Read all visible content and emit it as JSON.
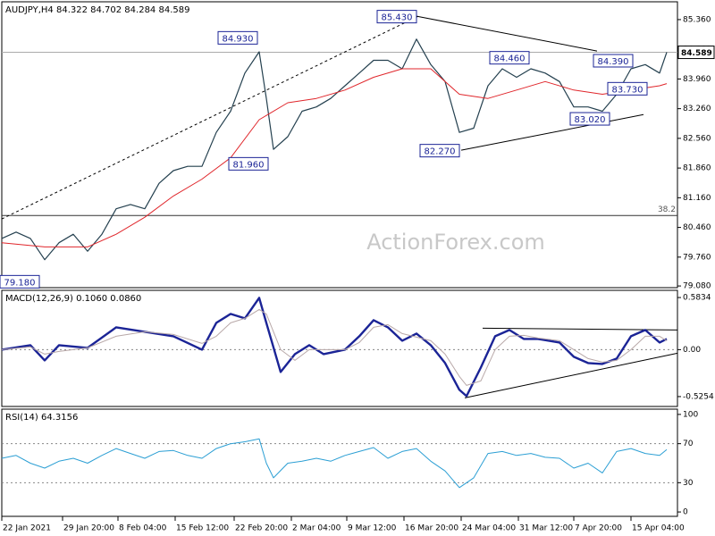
{
  "chart_data": [
    {
      "type": "line",
      "title": "AUDJPY,H4  84.322 84.702 84.284 84.589",
      "watermark": "ActionForex.com",
      "xlim": [
        0,
        378
      ],
      "ylim": [
        79.04,
        85.78
      ],
      "last_value_label": true,
      "yticks": [
        {
          "value": 85.36,
          "label": "85.360"
        },
        {
          "value": 84.66,
          "label": "84.660"
        },
        {
          "value": 83.96,
          "label": "83.960"
        },
        {
          "value": 83.26,
          "label": "83.260"
        },
        {
          "value": 82.56,
          "label": "82.560"
        },
        {
          "value": 81.86,
          "label": "81.860"
        },
        {
          "value": 81.16,
          "label": "81.160"
        },
        {
          "value": 80.46,
          "label": "80.460"
        },
        {
          "value": 79.76,
          "label": "79.760"
        },
        {
          "value": 79.08,
          "label": "79.080"
        }
      ],
      "series": [
        {
          "name": "AUDJPY",
          "color": "#24404f",
          "width": 1.2,
          "x": [
            0,
            8,
            16,
            24,
            32,
            40,
            48,
            56,
            64,
            72,
            80,
            88,
            96,
            104,
            112,
            120,
            128,
            136,
            144,
            148,
            152,
            160,
            168,
            176,
            184,
            192,
            200,
            208,
            216,
            224,
            232,
            240,
            248,
            256,
            264,
            272,
            280,
            288,
            296,
            304,
            312,
            320,
            328,
            336,
            344,
            352,
            360,
            368,
            372
          ],
          "values": [
            80.2,
            80.35,
            80.2,
            79.7,
            80.1,
            80.3,
            79.9,
            80.3,
            80.9,
            81.0,
            80.9,
            81.5,
            81.8,
            81.9,
            81.9,
            82.7,
            83.2,
            84.1,
            84.6,
            83.5,
            82.3,
            82.6,
            83.2,
            83.3,
            83.5,
            83.8,
            84.1,
            84.4,
            84.4,
            84.2,
            84.9,
            84.3,
            83.9,
            82.7,
            82.8,
            83.8,
            84.2,
            84.0,
            84.2,
            84.1,
            83.9,
            83.3,
            83.3,
            83.2,
            83.6,
            84.2,
            84.3,
            84.1,
            84.589
          ]
        },
        {
          "name": "MA",
          "color": "#e0262b",
          "width": 1,
          "x": [
            0,
            24,
            48,
            64,
            80,
            96,
            112,
            128,
            144,
            160,
            176,
            192,
            208,
            224,
            240,
            256,
            272,
            288,
            304,
            320,
            336,
            352,
            368,
            372
          ],
          "values": [
            80.1,
            80.0,
            80.0,
            80.3,
            80.7,
            81.2,
            81.6,
            82.1,
            83.0,
            83.4,
            83.5,
            83.7,
            84.0,
            84.2,
            84.2,
            83.6,
            83.5,
            83.7,
            83.9,
            83.7,
            83.6,
            83.7,
            83.8,
            83.85
          ]
        }
      ],
      "trendlines": [
        {
          "x": [
            0,
            233
          ],
          "y": [
            80.66,
            85.44
          ],
          "dashed": true
        },
        {
          "x": [
            232,
            333
          ],
          "y": [
            85.44,
            84.62
          ],
          "dashed": false
        },
        {
          "x": [
            257,
            359
          ],
          "y": [
            82.28,
            83.12
          ],
          "dashed": false
        }
      ],
      "fib_level": {
        "label": "38.2",
        "price": 80.74
      },
      "annotations": [
        {
          "label": "85.430",
          "value": 85.43,
          "x": 221
        },
        {
          "label": "84.930",
          "value": 84.93,
          "x": 132
        },
        {
          "label": "81.960",
          "value": 81.96,
          "x": 138
        },
        {
          "label": "84.460",
          "value": 84.46,
          "x": 284
        },
        {
          "label": "84.390",
          "value": 84.39,
          "x": 342
        },
        {
          "label": "83.730",
          "value": 83.73,
          "x": 350
        },
        {
          "label": "83.020",
          "value": 83.02,
          "x": 329
        },
        {
          "label": "82.270",
          "value": 82.27,
          "x": 245
        },
        {
          "label": "79.180",
          "value": 79.18,
          "x": 10
        }
      ]
    },
    {
      "type": "line",
      "title": "MACD(12,26,9) 0.1060 0.0860",
      "xlim": [
        0,
        378
      ],
      "ylim": [
        -0.636,
        0.664
      ],
      "yticks": [
        0.5834,
        {
          "value": 0,
          "label": "0.00"
        },
        -0.5254
      ],
      "level_lines": [
        0
      ],
      "series": [
        {
          "name": "MACD",
          "color": "#1b2496",
          "width": 2.4,
          "x": [
            0,
            16,
            24,
            32,
            48,
            64,
            80,
            96,
            112,
            120,
            128,
            136,
            144,
            148,
            156,
            164,
            172,
            180,
            192,
            200,
            208,
            216,
            224,
            232,
            240,
            248,
            256,
            260,
            268,
            276,
            284,
            292,
            300,
            312,
            320,
            328,
            336,
            344,
            352,
            360,
            368,
            372
          ],
          "values": [
            0.0,
            0.05,
            -0.12,
            0.05,
            0.02,
            0.25,
            0.2,
            0.15,
            0.0,
            0.3,
            0.4,
            0.35,
            0.58,
            0.3,
            -0.25,
            -0.05,
            0.05,
            -0.05,
            0.0,
            0.15,
            0.33,
            0.25,
            0.1,
            0.18,
            0.05,
            -0.15,
            -0.45,
            -0.52,
            -0.2,
            0.15,
            0.22,
            0.12,
            0.12,
            0.08,
            -0.08,
            -0.15,
            -0.16,
            -0.1,
            0.15,
            0.22,
            0.08,
            0.12
          ]
        },
        {
          "name": "Signal",
          "color": "#b8a8a8",
          "width": 1,
          "x": [
            0,
            16,
            24,
            32,
            48,
            64,
            80,
            96,
            112,
            120,
            128,
            136,
            144,
            148,
            156,
            164,
            172,
            180,
            192,
            200,
            208,
            216,
            224,
            232,
            240,
            248,
            256,
            260,
            268,
            276,
            284,
            292,
            300,
            312,
            320,
            328,
            336,
            344,
            352,
            360,
            368,
            372
          ],
          "values": [
            0.0,
            0.03,
            -0.05,
            -0.02,
            0.02,
            0.15,
            0.2,
            0.17,
            0.07,
            0.15,
            0.3,
            0.35,
            0.45,
            0.4,
            0.0,
            -0.12,
            0.0,
            0.0,
            0.0,
            0.08,
            0.25,
            0.28,
            0.18,
            0.14,
            0.1,
            -0.05,
            -0.3,
            -0.4,
            -0.35,
            0.0,
            0.15,
            0.16,
            0.13,
            0.1,
            0.0,
            -0.1,
            -0.14,
            -0.12,
            0.0,
            0.15,
            0.15,
            0.1
          ]
        }
      ],
      "trendlines": [
        {
          "x": [
            269,
            378
          ],
          "y": [
            0.24,
            0.22
          ],
          "dashed": false
        },
        {
          "x": [
            259,
            378
          ],
          "y": [
            -0.54,
            -0.04
          ],
          "dashed": false
        }
      ]
    },
    {
      "type": "line",
      "title": "RSI(14) 64.3156",
      "xlim": [
        0,
        378
      ],
      "ylim": [
        -4.5,
        105.4
      ],
      "yticks": [
        100,
        70,
        30,
        0
      ],
      "level_lines": [
        70,
        30
      ],
      "series": [
        {
          "name": "RSI",
          "color": "#2c9fd4",
          "width": 1,
          "x": [
            0,
            8,
            16,
            24,
            32,
            40,
            48,
            56,
            64,
            72,
            80,
            88,
            96,
            104,
            112,
            120,
            128,
            136,
            144,
            148,
            152,
            160,
            168,
            176,
            184,
            192,
            200,
            208,
            216,
            224,
            232,
            240,
            248,
            256,
            264,
            272,
            280,
            288,
            296,
            304,
            312,
            320,
            328,
            336,
            344,
            352,
            360,
            368,
            372
          ],
          "values": [
            55,
            58,
            50,
            45,
            52,
            55,
            50,
            58,
            65,
            60,
            55,
            62,
            63,
            58,
            55,
            65,
            70,
            72,
            75,
            50,
            35,
            50,
            52,
            55,
            52,
            58,
            62,
            66,
            55,
            62,
            65,
            52,
            42,
            25,
            35,
            60,
            62,
            58,
            60,
            56,
            55,
            45,
            50,
            40,
            62,
            65,
            60,
            58,
            64
          ]
        }
      ],
      "xticks": [
        {
          "value": 0,
          "label": "22 Jan 2021"
        },
        {
          "value": 34,
          "label": "29 Jan 20:00"
        },
        {
          "value": 65,
          "label": "8 Feb 04:00"
        },
        {
          "value": 97,
          "label": "15 Feb 12:00"
        },
        {
          "value": 130,
          "label": "22 Feb 20:00"
        },
        {
          "value": 162,
          "label": "2 Mar 04:00"
        },
        {
          "value": 193,
          "label": "9 Mar 12:00"
        },
        {
          "value": 225,
          "label": "16 Mar 20:00"
        },
        {
          "value": 257,
          "label": "24 Mar 04:00"
        },
        {
          "value": 289,
          "label": "31 Mar 12:00"
        },
        {
          "value": 320,
          "label": "7 Apr 20:00"
        },
        {
          "value": 352,
          "label": "15 Apr 04:00"
        }
      ]
    }
  ]
}
